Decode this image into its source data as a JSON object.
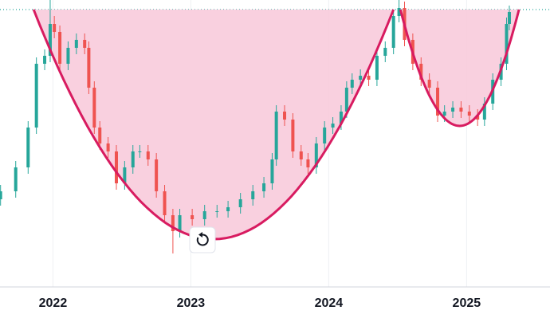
{
  "chart_data": {
    "type": "candlestick",
    "x": [
      2021.62,
      2021.73,
      2021.82,
      2021.88,
      2021.94,
      2021.98,
      2022.01,
      2022.05,
      2022.11,
      2022.17,
      2022.23,
      2022.26,
      2022.3,
      2022.34,
      2022.4,
      2022.46,
      2022.52,
      2022.58,
      2022.63,
      2022.69,
      2022.75,
      2022.81,
      2022.87,
      2022.92,
      2023.01,
      2023.1,
      2023.19,
      2023.27,
      2023.36,
      2023.45,
      2023.53,
      2023.59,
      2023.62,
      2023.68,
      2023.74,
      2023.8,
      2023.85,
      2023.91,
      2023.97,
      2024.03,
      2024.09,
      2024.13,
      2024.17,
      2024.23,
      2024.29,
      2024.35,
      2024.41,
      2024.47,
      2024.51,
      2024.55,
      2024.61,
      2024.67,
      2024.73,
      2024.79,
      2024.84,
      2024.9,
      2024.96,
      2025.02,
      2025.08,
      2025.13,
      2025.19,
      2025.25,
      2025.29,
      2025.31
    ],
    "open": [
      110,
      120,
      150,
      200,
      280,
      290,
      330,
      320,
      280,
      300,
      310,
      300,
      250,
      200,
      180,
      170,
      130,
      150,
      170,
      170,
      160,
      120,
      90,
      70,
      90,
      85,
      95,
      95,
      100,
      110,
      120,
      130,
      160,
      220,
      210,
      170,
      160,
      150,
      180,
      200,
      205,
      220,
      250,
      260,
      265,
      260,
      290,
      300,
      340,
      350,
      310,
      280,
      260,
      250,
      215,
      220,
      225,
      220,
      215,
      210,
      230,
      260,
      280,
      330
    ],
    "high": [
      128,
      158,
      208,
      288,
      298,
      360,
      340,
      328,
      308,
      318,
      318,
      308,
      258,
      208,
      188,
      178,
      158,
      178,
      178,
      178,
      168,
      128,
      98,
      98,
      98,
      103,
      103,
      108,
      118,
      128,
      138,
      168,
      228,
      228,
      218,
      178,
      168,
      188,
      208,
      213,
      228,
      258,
      268,
      273,
      273,
      298,
      308,
      348,
      360,
      358,
      318,
      288,
      268,
      258,
      228,
      233,
      233,
      228,
      223,
      238,
      268,
      288,
      338,
      353
    ],
    "low": [
      102,
      112,
      142,
      192,
      272,
      282,
      312,
      272,
      272,
      292,
      292,
      242,
      192,
      172,
      162,
      122,
      122,
      142,
      162,
      152,
      112,
      82,
      42,
      62,
      77,
      77,
      87,
      87,
      92,
      102,
      112,
      122,
      152,
      202,
      162,
      152,
      142,
      142,
      172,
      192,
      197,
      212,
      242,
      252,
      252,
      252,
      282,
      292,
      332,
      302,
      272,
      252,
      242,
      207,
      207,
      212,
      212,
      207,
      202,
      202,
      222,
      252,
      272,
      322
    ],
    "close": [
      120,
      150,
      200,
      280,
      290,
      330,
      320,
      280,
      300,
      310,
      300,
      250,
      200,
      180,
      170,
      130,
      150,
      170,
      170,
      160,
      120,
      90,
      70,
      90,
      85,
      95,
      95,
      100,
      110,
      120,
      130,
      160,
      220,
      210,
      170,
      160,
      150,
      180,
      200,
      205,
      220,
      250,
      260,
      265,
      260,
      290,
      300,
      340,
      350,
      310,
      280,
      260,
      250,
      215,
      220,
      225,
      220,
      215,
      210,
      230,
      260,
      280,
      330,
      345
    ],
    "up_color": "#26a69a",
    "down_color": "#ef5350",
    "xlim": [
      2021.616,
      2025.605
    ],
    "xticks": [
      2022,
      2023,
      2024,
      2025
    ],
    "ylim": [
      0,
      360
    ],
    "grid": true,
    "resistance": 348,
    "curves": [
      {
        "x": [
          2021.86,
          2023.18,
          2024.47
        ],
        "y": [
          348,
          60,
          348
        ]
      },
      {
        "x": [
          2024.52,
          2024.9,
          2025.38
        ],
        "y": [
          348,
          204,
          348
        ]
      }
    ],
    "curve_color": "#d81b60",
    "fill_color": "#f8cbdc"
  }
}
